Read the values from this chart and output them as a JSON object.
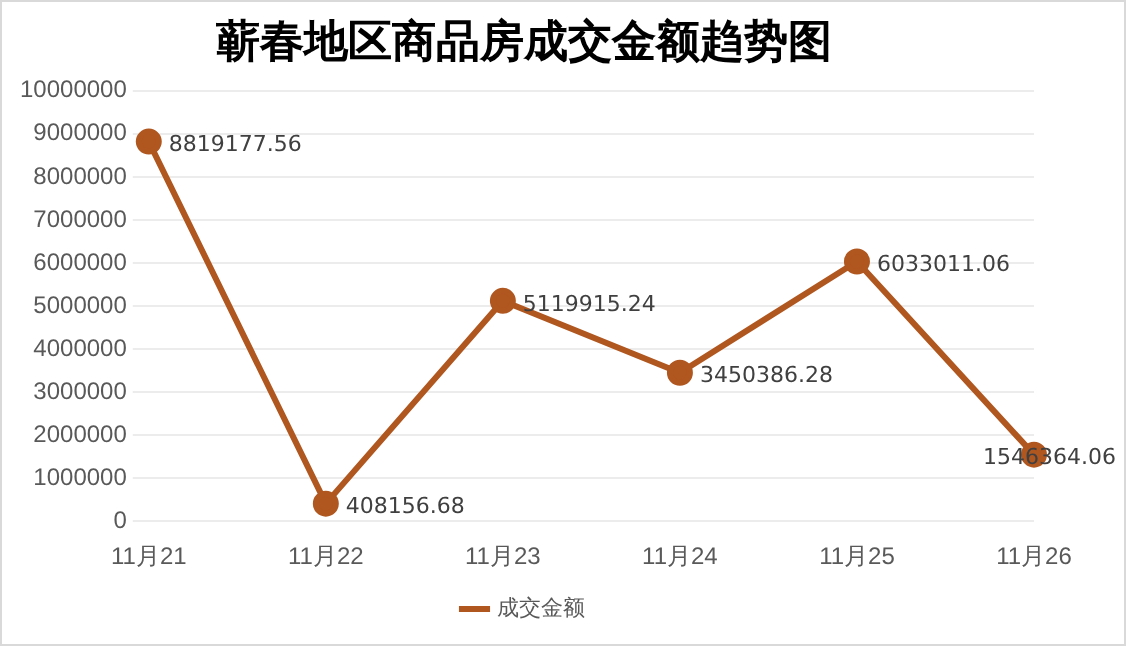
{
  "chart_data": {
    "type": "line",
    "title": "蕲春地区商品房成交金额趋势图",
    "categories": [
      "11月21",
      "11月22",
      "11月23",
      "11月24",
      "11月25",
      "11月26"
    ],
    "series": [
      {
        "name": "成交金额",
        "color": "#b0561f",
        "values": [
          8819177.56,
          408156.68,
          5119915.24,
          3450386.28,
          6033011.06,
          1546364.06
        ]
      }
    ],
    "ylim": [
      0,
      10000000
    ],
    "yticks": [
      0,
      1000000,
      2000000,
      3000000,
      4000000,
      5000000,
      6000000,
      7000000,
      8000000,
      9000000,
      10000000
    ],
    "grid": "y",
    "legend": "bottom",
    "marker": "circle",
    "data_labels": true
  }
}
